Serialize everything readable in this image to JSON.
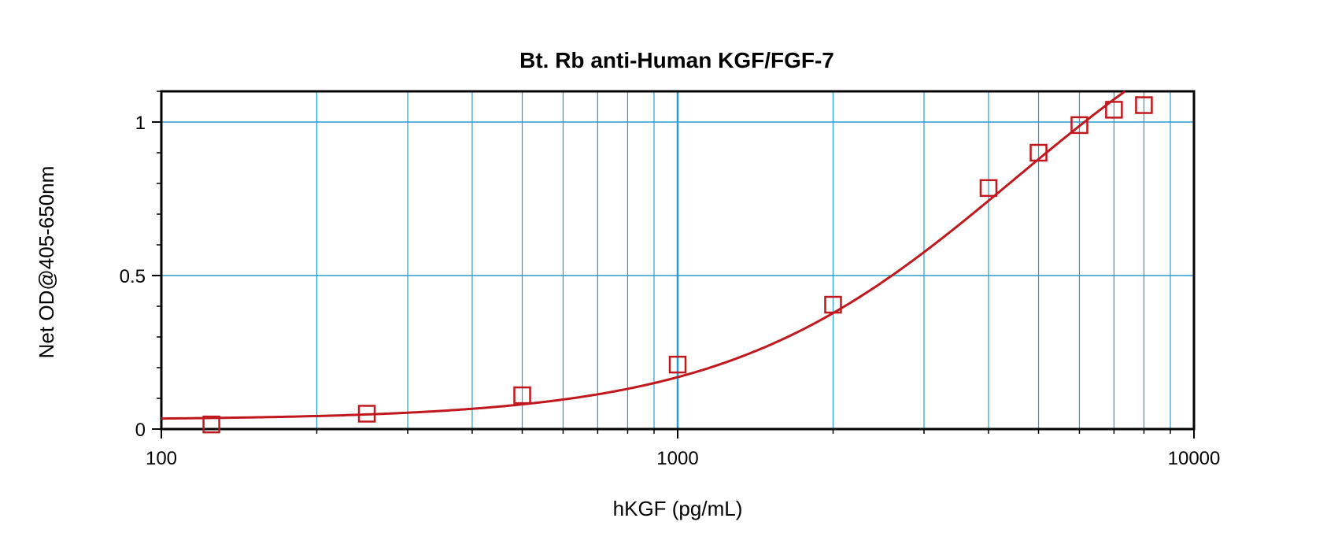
{
  "chart_data": {
    "type": "scatter",
    "title": "Bt. Rb anti-Human KGF/FGF-7",
    "xlabel": "hKGF (pg/mL)",
    "ylabel": "Net OD@405-650nm",
    "x_scale": "log",
    "xlim": [
      100,
      10000
    ],
    "ylim": [
      0,
      1.1
    ],
    "x_tick_labels": [
      "100",
      "1000",
      "10000"
    ],
    "x_tick_values": [
      100,
      1000,
      10000
    ],
    "y_tick_labels": [
      "0",
      "0.5",
      "1"
    ],
    "y_tick_values": [
      0,
      0.5,
      1
    ],
    "grid": true,
    "legend": "none",
    "series": [
      {
        "marker": "open-square",
        "x": [
          125,
          250,
          500,
          1000,
          2000,
          4000,
          5000,
          6000,
          7000,
          8000
        ],
        "y": [
          0.015,
          0.05,
          0.11,
          0.21,
          0.405,
          0.785,
          0.9,
          0.99,
          1.04,
          1.055
        ]
      }
    ],
    "fit_curve": {
      "type": "4-parameter logistic",
      "bottom": 0.03,
      "top": 1.6,
      "ec50": 4500,
      "hill": 1.55
    },
    "colors": {
      "series": "#c0181d",
      "grid": "#2a9bd1",
      "axis": "#000000"
    }
  }
}
